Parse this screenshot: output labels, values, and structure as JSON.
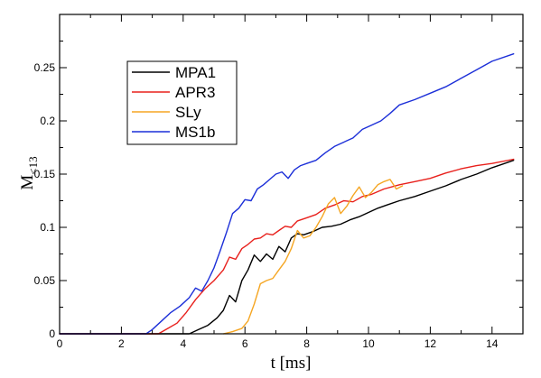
{
  "chart_data": {
    "type": "line",
    "title": "",
    "xlabel": "t [ms]",
    "ylabel": {
      "main": "M",
      "sub": "<13"
    },
    "xlim": [
      0,
      15
    ],
    "ylim": [
      0,
      0.3
    ],
    "xticks": [
      0,
      2,
      4,
      6,
      8,
      10,
      12,
      14
    ],
    "yticks": [
      0,
      0.05,
      0.1,
      0.15,
      0.2,
      0.25
    ],
    "ytick_labels": [
      "0",
      "0.05",
      "0.1",
      "0.15",
      "0.2",
      "0.25"
    ],
    "grid": false,
    "legend_placement": "upper-left",
    "series": [
      {
        "name": "MPA1",
        "color": "#000000",
        "x": [
          0,
          4.2,
          4.5,
          4.8,
          5.1,
          5.3,
          5.5,
          5.7,
          5.9,
          6.1,
          6.3,
          6.5,
          6.7,
          6.9,
          7.1,
          7.3,
          7.5,
          7.7,
          7.9,
          8.2,
          8.5,
          8.8,
          9.1,
          9.4,
          9.7,
          10.0,
          10.3,
          10.6,
          11.0,
          11.5,
          12.0,
          12.5,
          13.0,
          13.5,
          14.0,
          14.3,
          14.7
        ],
        "y": [
          0,
          0,
          0.004,
          0.008,
          0.015,
          0.022,
          0.036,
          0.03,
          0.05,
          0.06,
          0.074,
          0.068,
          0.075,
          0.07,
          0.082,
          0.077,
          0.09,
          0.094,
          0.093,
          0.096,
          0.1,
          0.101,
          0.103,
          0.107,
          0.11,
          0.114,
          0.118,
          0.121,
          0.125,
          0.129,
          0.134,
          0.139,
          0.145,
          0.15,
          0.156,
          0.159,
          0.163
        ]
      },
      {
        "name": "APR3",
        "color": "#e8201c",
        "x": [
          0,
          3.2,
          3.5,
          3.8,
          4.1,
          4.4,
          4.7,
          5.0,
          5.3,
          5.5,
          5.7,
          5.9,
          6.1,
          6.3,
          6.5,
          6.7,
          6.9,
          7.1,
          7.3,
          7.5,
          7.7,
          8.0,
          8.3,
          8.6,
          8.9,
          9.2,
          9.5,
          9.8,
          10.1,
          10.5,
          11.0,
          11.5,
          12.0,
          12.5,
          13.0,
          13.5,
          14.0,
          14.7
        ],
        "y": [
          0,
          0,
          0.005,
          0.01,
          0.02,
          0.032,
          0.042,
          0.05,
          0.06,
          0.072,
          0.07,
          0.08,
          0.084,
          0.089,
          0.09,
          0.094,
          0.093,
          0.097,
          0.101,
          0.1,
          0.106,
          0.109,
          0.112,
          0.118,
          0.121,
          0.125,
          0.124,
          0.129,
          0.131,
          0.136,
          0.14,
          0.143,
          0.146,
          0.151,
          0.155,
          0.158,
          0.16,
          0.164
        ]
      },
      {
        "name": "SLy",
        "color": "#f5a623",
        "x": [
          5.3,
          5.6,
          5.9,
          6.1,
          6.3,
          6.5,
          6.7,
          6.9,
          7.1,
          7.3,
          7.5,
          7.7,
          7.9,
          8.1,
          8.3,
          8.5,
          8.7,
          8.9,
          9.1,
          9.3,
          9.5,
          9.7,
          9.9,
          10.1,
          10.3,
          10.5,
          10.7,
          10.9,
          11.1
        ],
        "y": [
          0,
          0.002,
          0.005,
          0.012,
          0.028,
          0.047,
          0.05,
          0.052,
          0.06,
          0.068,
          0.08,
          0.097,
          0.09,
          0.092,
          0.1,
          0.11,
          0.122,
          0.128,
          0.113,
          0.12,
          0.13,
          0.138,
          0.128,
          0.133,
          0.14,
          0.143,
          0.145,
          0.136,
          0.139
        ]
      },
      {
        "name": "MS1b",
        "color": "#1c2fd8",
        "x": [
          0,
          2.8,
          3.0,
          3.3,
          3.6,
          3.9,
          4.2,
          4.4,
          4.6,
          4.8,
          5.0,
          5.2,
          5.4,
          5.6,
          5.8,
          6.0,
          6.2,
          6.4,
          6.6,
          6.8,
          7.0,
          7.2,
          7.4,
          7.6,
          7.8,
          8.0,
          8.3,
          8.6,
          8.9,
          9.2,
          9.5,
          9.8,
          10.1,
          10.4,
          10.7,
          11.0,
          11.5,
          12.0,
          12.5,
          13.0,
          13.5,
          14.0,
          14.7
        ],
        "y": [
          0,
          0,
          0.004,
          0.012,
          0.02,
          0.026,
          0.034,
          0.043,
          0.04,
          0.05,
          0.062,
          0.078,
          0.095,
          0.113,
          0.118,
          0.126,
          0.125,
          0.136,
          0.14,
          0.145,
          0.15,
          0.152,
          0.146,
          0.154,
          0.158,
          0.16,
          0.163,
          0.17,
          0.176,
          0.18,
          0.184,
          0.192,
          0.196,
          0.2,
          0.207,
          0.215,
          0.22,
          0.226,
          0.232,
          0.24,
          0.248,
          0.256,
          0.263
        ]
      }
    ]
  }
}
